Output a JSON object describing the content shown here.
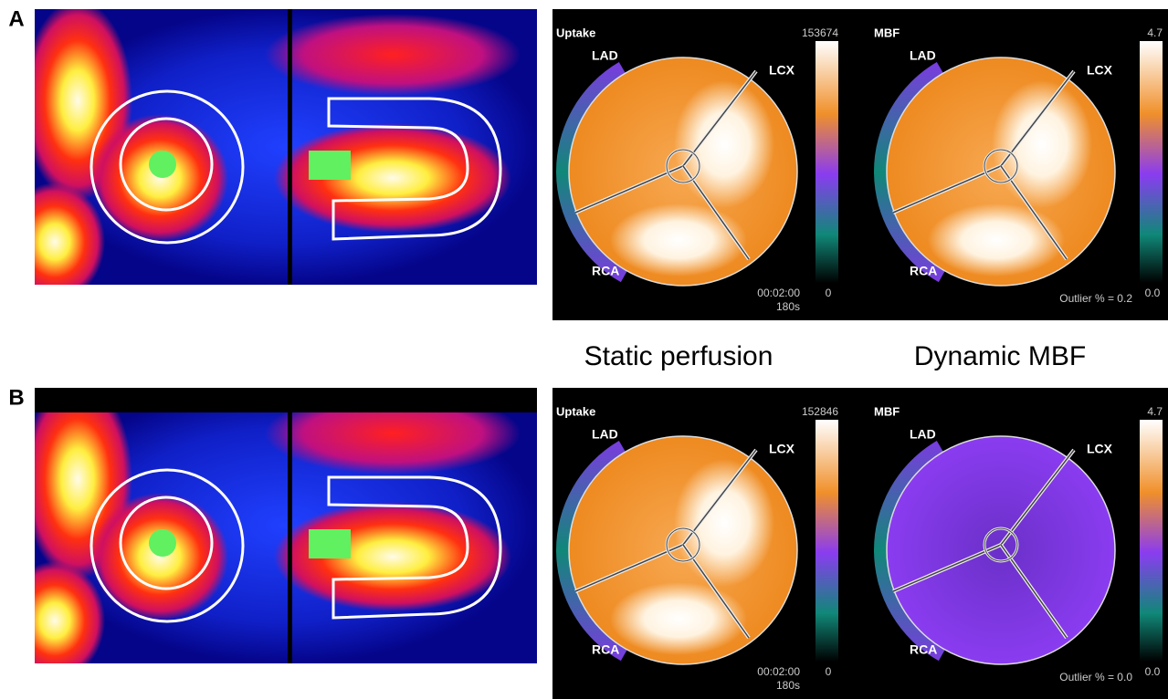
{
  "panels": [
    {
      "label": "A",
      "uptake": {
        "title": "Uptake",
        "max": "153674",
        "min": "0",
        "territories": [
          "LAD",
          "LCX",
          "RCA"
        ],
        "time": "00:02:00",
        "duration": "180s"
      },
      "mbf": {
        "title": "MBF",
        "max": "4.7",
        "min": "0.0",
        "territories": [
          "LAD",
          "LCX",
          "RCA"
        ],
        "outlier": "Outlier % = 0.2"
      }
    },
    {
      "label": "B",
      "uptake": {
        "title": "Uptake",
        "max": "152846",
        "min": "0",
        "territories": [
          "LAD",
          "LCX",
          "RCA"
        ],
        "time": "00:02:00",
        "duration": "180s"
      },
      "mbf": {
        "title": "MBF",
        "max": "4.7",
        "min": "0.0",
        "territories": [
          "LAD",
          "LCX",
          "RCA"
        ],
        "outlier": "Outlier % = 0.0"
      }
    }
  ],
  "captions": [
    "Static perfusion",
    "Dynamic MBF"
  ]
}
